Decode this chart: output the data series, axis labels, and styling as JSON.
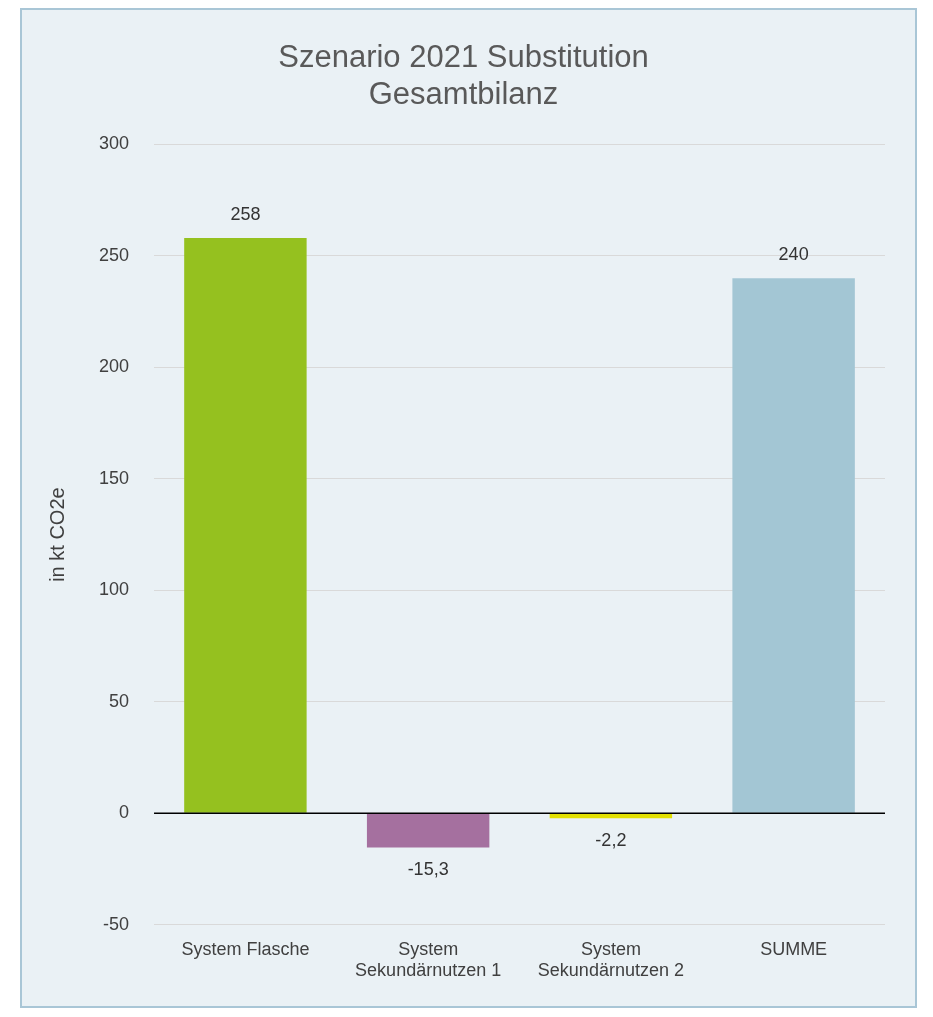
{
  "chart_data": {
    "type": "bar",
    "title": "Szenario 2021 Substitution Gesamtbilanz",
    "ylabel": "in kt CO2e",
    "categories": [
      "System Flasche",
      "System Sekundärnutzen 1",
      "System Sekundärnutzen 2",
      "SUMME"
    ],
    "values": [
      258,
      -15.3,
      -2.2,
      240
    ],
    "colors": [
      "#95c11f",
      "#a5709f",
      "#e2e000",
      "#a3c6d4"
    ],
    "value_labels": [
      "258",
      "-15,3",
      "-2,2",
      "240"
    ],
    "ylim": [
      -50,
      300
    ],
    "yticks": [
      -50,
      0,
      50,
      100,
      150,
      200,
      250,
      300
    ],
    "grid": "y",
    "legend": false
  }
}
